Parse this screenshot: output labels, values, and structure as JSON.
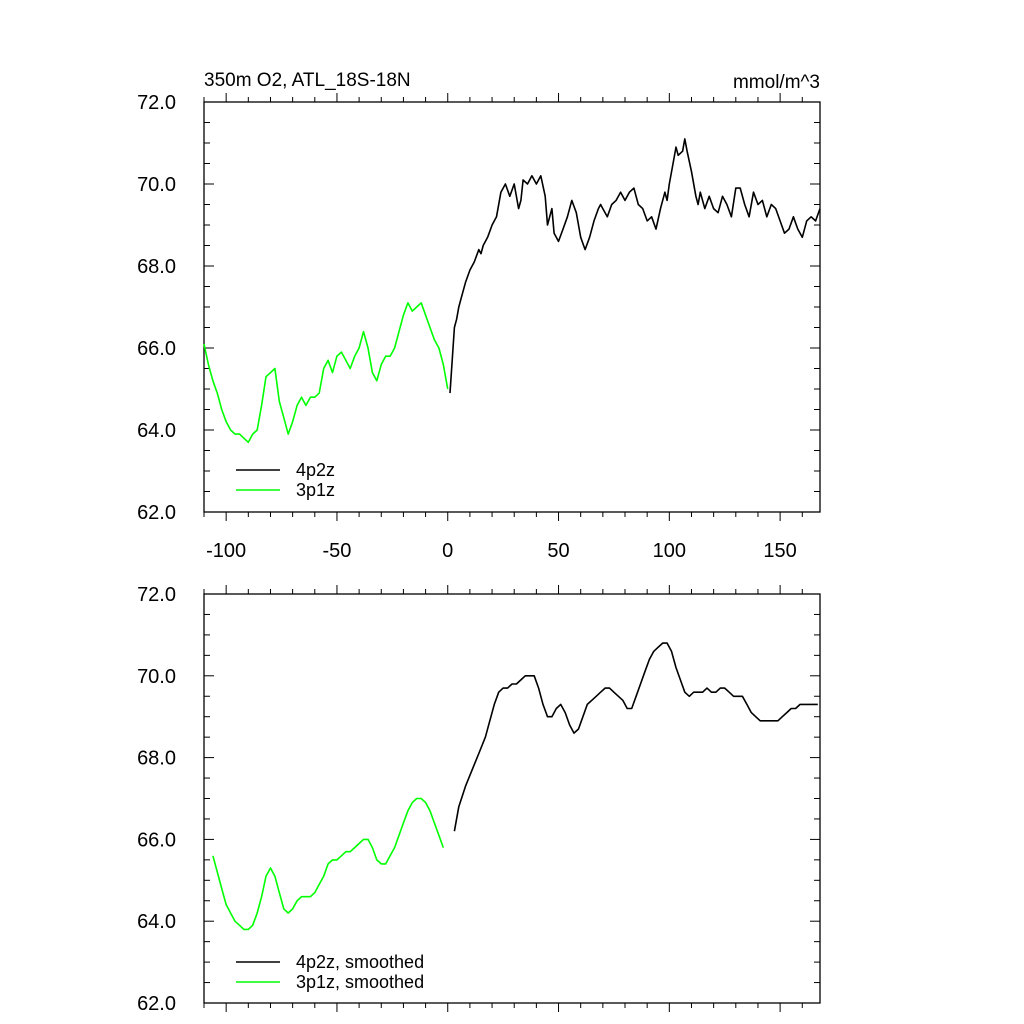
{
  "colors": {
    "black_series": "#000000",
    "green_series": "#00ff00",
    "axis": "#000000"
  },
  "chart_data": [
    {
      "type": "line",
      "title": "350m O2, ATL_18S-18N",
      "units": "mmol/m^3",
      "xlim": [
        -110,
        168
      ],
      "ylim": [
        62,
        72
      ],
      "x_ticks": [
        -100,
        -50,
        0,
        50,
        100,
        150
      ],
      "x_tick_labels": [
        "-100",
        "-50",
        "0",
        "50",
        "100",
        "150"
      ],
      "y_ticks": [
        62,
        64,
        66,
        68,
        70,
        72
      ],
      "y_tick_labels": [
        "62.0",
        "64.0",
        "66.0",
        "68.0",
        "70.0",
        "72.0"
      ],
      "grid": false,
      "legend": "bottom-left",
      "series": [
        {
          "name": "4p2z",
          "color": "#000000",
          "x": [
            1,
            2,
            3,
            4,
            5,
            6,
            8,
            10,
            12,
            14,
            15,
            16,
            18,
            20,
            22,
            24,
            26,
            28,
            30,
            32,
            33,
            34,
            36,
            38,
            40,
            42,
            44,
            45,
            47,
            48,
            49,
            50,
            52,
            54,
            56,
            58,
            59,
            60,
            62,
            64,
            66,
            68,
            69,
            70,
            72,
            74,
            76,
            78,
            80,
            82,
            84,
            86,
            88,
            90,
            92,
            94,
            96,
            98,
            99,
            100,
            102,
            103,
            104,
            106,
            107,
            108,
            110,
            112,
            113,
            114,
            116,
            118,
            120,
            122,
            124,
            126,
            128,
            130,
            132,
            134,
            136,
            138,
            140,
            142,
            144,
            146,
            148,
            150,
            152,
            154,
            156,
            158,
            160,
            162,
            164,
            166,
            168
          ],
          "y": [
            64.9,
            65.7,
            66.5,
            66.7,
            67.0,
            67.2,
            67.6,
            67.9,
            68.1,
            68.4,
            68.3,
            68.5,
            68.7,
            69.0,
            69.2,
            69.8,
            70.0,
            69.7,
            70.0,
            69.4,
            69.6,
            70.1,
            70.0,
            70.2,
            70.0,
            70.2,
            69.7,
            69.0,
            69.4,
            68.8,
            68.7,
            68.6,
            68.9,
            69.2,
            69.6,
            69.3,
            69.0,
            68.7,
            68.4,
            68.7,
            69.1,
            69.4,
            69.5,
            69.4,
            69.2,
            69.5,
            69.6,
            69.8,
            69.6,
            69.8,
            69.9,
            69.5,
            69.4,
            69.1,
            69.2,
            68.9,
            69.4,
            69.8,
            69.6,
            70.0,
            70.6,
            70.9,
            70.7,
            70.8,
            71.1,
            70.8,
            70.3,
            69.7,
            69.5,
            69.8,
            69.4,
            69.7,
            69.4,
            69.3,
            69.7,
            69.5,
            69.2,
            69.9,
            69.9,
            69.5,
            69.2,
            69.8,
            69.5,
            69.6,
            69.2,
            69.5,
            69.4,
            69.1,
            68.8,
            68.9,
            69.2,
            68.9,
            68.7,
            69.1,
            69.2,
            69.1,
            69.4
          ]
        },
        {
          "name": "3p1z",
          "color": "#00ff00",
          "x": [
            -110,
            -108,
            -106,
            -104,
            -102,
            -100,
            -98,
            -96,
            -94,
            -92,
            -90,
            -88,
            -86,
            -84,
            -82,
            -80,
            -78,
            -76,
            -74,
            -72,
            -70,
            -68,
            -66,
            -64,
            -62,
            -60,
            -58,
            -56,
            -54,
            -52,
            -50,
            -48,
            -46,
            -44,
            -42,
            -40,
            -38,
            -36,
            -34,
            -32,
            -30,
            -28,
            -26,
            -24,
            -22,
            -20,
            -18,
            -16,
            -14,
            -12,
            -10,
            -8,
            -6,
            -4,
            -2,
            0
          ],
          "y": [
            66.1,
            65.6,
            65.2,
            64.9,
            64.5,
            64.2,
            64.0,
            63.9,
            63.9,
            63.8,
            63.7,
            63.9,
            64.0,
            64.6,
            65.3,
            65.4,
            65.5,
            64.7,
            64.3,
            63.9,
            64.2,
            64.6,
            64.8,
            64.6,
            64.8,
            64.8,
            64.9,
            65.5,
            65.7,
            65.4,
            65.8,
            65.9,
            65.7,
            65.5,
            65.8,
            66.0,
            66.4,
            66.0,
            65.4,
            65.2,
            65.6,
            65.8,
            65.8,
            66.0,
            66.4,
            66.8,
            67.1,
            66.9,
            67.0,
            67.1,
            66.8,
            66.5,
            66.2,
            66.0,
            65.6,
            65.0
          ]
        }
      ]
    },
    {
      "type": "line",
      "xlim": [
        -110,
        168
      ],
      "ylim": [
        62,
        72
      ],
      "y_ticks": [
        62,
        64,
        66,
        68,
        70,
        72
      ],
      "y_tick_labels": [
        "62.0",
        "64.0",
        "66.0",
        "68.0",
        "70.0",
        "72.0"
      ],
      "grid": false,
      "legend": "bottom-left",
      "series": [
        {
          "name": "4p2z, smoothed",
          "color": "#000000",
          "x": [
            3,
            5,
            8,
            11,
            14,
            17,
            19,
            21,
            23,
            25,
            27,
            29,
            31,
            33,
            35,
            37,
            39,
            41,
            43,
            45,
            47,
            49,
            51,
            53,
            55,
            57,
            59,
            61,
            63,
            65,
            67,
            69,
            71,
            73,
            75,
            77,
            79,
            81,
            83,
            85,
            87,
            89,
            91,
            93,
            95,
            97,
            99,
            101,
            103,
            105,
            107,
            109,
            111,
            113,
            115,
            117,
            119,
            121,
            123,
            125,
            127,
            129,
            131,
            133,
            135,
            137,
            139,
            141,
            143,
            145,
            147,
            149,
            151,
            153,
            155,
            157,
            159,
            161,
            163,
            165,
            167
          ],
          "y": [
            66.2,
            66.8,
            67.3,
            67.7,
            68.1,
            68.5,
            68.9,
            69.3,
            69.6,
            69.7,
            69.7,
            69.8,
            69.8,
            69.9,
            70.0,
            70.0,
            70.0,
            69.7,
            69.3,
            69.0,
            69.0,
            69.2,
            69.3,
            69.1,
            68.8,
            68.6,
            68.7,
            69.0,
            69.3,
            69.4,
            69.5,
            69.6,
            69.7,
            69.7,
            69.6,
            69.5,
            69.4,
            69.2,
            69.2,
            69.5,
            69.8,
            70.1,
            70.4,
            70.6,
            70.7,
            70.8,
            70.8,
            70.6,
            70.2,
            69.9,
            69.6,
            69.5,
            69.6,
            69.6,
            69.6,
            69.7,
            69.6,
            69.6,
            69.7,
            69.7,
            69.6,
            69.5,
            69.5,
            69.5,
            69.3,
            69.1,
            69.0,
            68.9,
            68.9,
            68.9,
            68.9,
            68.9,
            69.0,
            69.1,
            69.2,
            69.2,
            69.3,
            69.3,
            69.3,
            69.3,
            69.3
          ]
        },
        {
          "name": "3p1z, smoothed",
          "color": "#00ff00",
          "x": [
            -106,
            -104,
            -102,
            -100,
            -98,
            -96,
            -94,
            -92,
            -90,
            -88,
            -86,
            -84,
            -82,
            -80,
            -78,
            -76,
            -74,
            -72,
            -70,
            -68,
            -66,
            -64,
            -62,
            -60,
            -58,
            -56,
            -54,
            -52,
            -50,
            -48,
            -46,
            -44,
            -42,
            -40,
            -38,
            -36,
            -34,
            -32,
            -30,
            -28,
            -26,
            -24,
            -22,
            -20,
            -18,
            -16,
            -14,
            -12,
            -10,
            -8,
            -6,
            -4,
            -2
          ],
          "y": [
            65.6,
            65.2,
            64.8,
            64.4,
            64.2,
            64.0,
            63.9,
            63.8,
            63.8,
            63.9,
            64.2,
            64.6,
            65.1,
            65.3,
            65.1,
            64.7,
            64.3,
            64.2,
            64.3,
            64.5,
            64.6,
            64.6,
            64.6,
            64.7,
            64.9,
            65.1,
            65.4,
            65.5,
            65.5,
            65.6,
            65.7,
            65.7,
            65.8,
            65.9,
            66.0,
            66.0,
            65.8,
            65.5,
            65.4,
            65.4,
            65.6,
            65.8,
            66.1,
            66.4,
            66.7,
            66.9,
            67.0,
            67.0,
            66.9,
            66.7,
            66.4,
            66.1,
            65.8
          ]
        }
      ]
    }
  ]
}
